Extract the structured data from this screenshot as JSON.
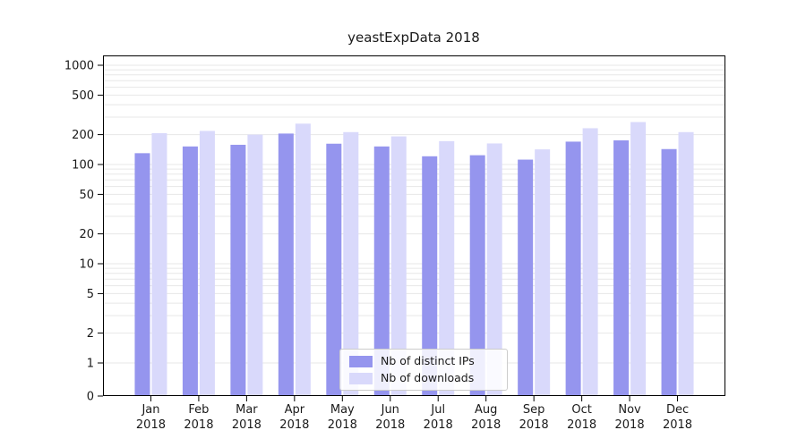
{
  "figure": {
    "title": "yeastExpData 2018"
  },
  "legend": {
    "items": [
      {
        "label": "Nb of distinct IPs",
        "series": "ips"
      },
      {
        "label": "Nb of downloads",
        "series": "downloads"
      }
    ]
  },
  "colors": {
    "ips": "#9595ee",
    "downloads": "#d9d9fb",
    "grid": "#e7e7e7",
    "axis": "#000000",
    "text": "#1a1a1a"
  },
  "chart_data": {
    "type": "bar",
    "title": "yeastExpData 2018",
    "yscale": "symlog",
    "ylim": [
      0,
      1000
    ],
    "yticks": [
      0,
      1,
      2,
      5,
      10,
      20,
      50,
      100,
      200,
      500,
      1000
    ],
    "grid": "horizontal-log-minor",
    "legend_position": "lower center",
    "categories": [
      "Jan",
      "Feb",
      "Mar",
      "Apr",
      "May",
      "Jun",
      "Jul",
      "Aug",
      "Sep",
      "Oct",
      "Nov",
      "Dec"
    ],
    "year_label": "2018",
    "series": [
      {
        "name": "Nb of distinct IPs",
        "key": "ips",
        "values": [
          130,
          152,
          158,
          205,
          162,
          152,
          121,
          124,
          112,
          170,
          175,
          143
        ]
      },
      {
        "name": "Nb of downloads",
        "key": "downloads",
        "values": [
          207,
          218,
          200,
          258,
          212,
          192,
          172,
          163,
          142,
          232,
          268,
          212
        ]
      }
    ]
  }
}
